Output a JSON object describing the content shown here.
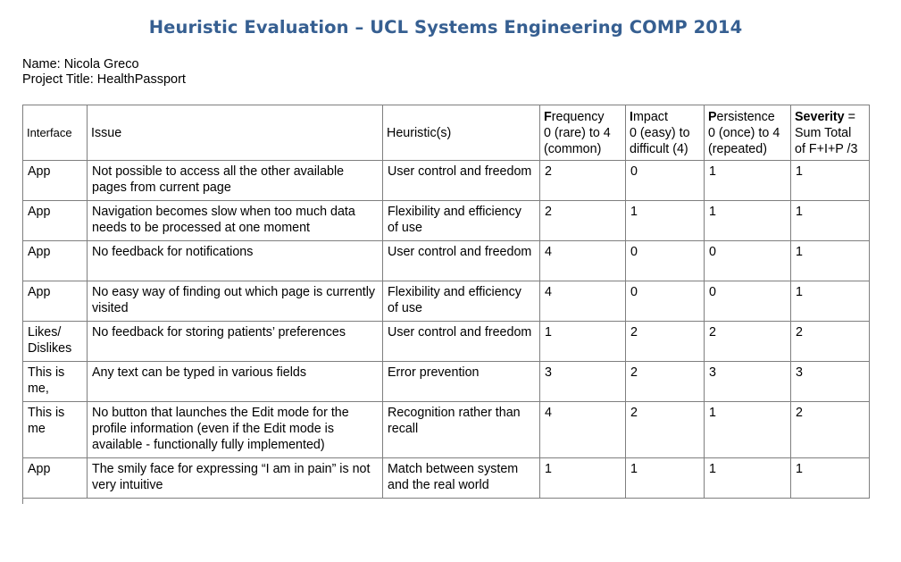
{
  "document": {
    "title": "Heuristic Evaluation – UCL Systems Engineering COMP 2014",
    "name_line": "Name: Nicola Greco",
    "project_line": "Project Title: HealthPassport"
  },
  "table": {
    "headers": {
      "interface": "Interface",
      "issue": "Issue",
      "heuristic": "Heuristic(s)",
      "frequency": {
        "bold": "F",
        "rest_1": "requency",
        "line2": "0 (rare)  to 4",
        "line3": "(common)"
      },
      "impact": {
        "bold": "I",
        "rest_1": "mpact",
        "line2": "0 (easy) to",
        "line3": "difficult (4)"
      },
      "persistence": {
        "bold": "P",
        "rest_1": "ersistence",
        "line2": "0 (once) to 4",
        "line3": "(repeated)"
      },
      "severity": {
        "bold": "Severity",
        "rest_1": " =",
        "line2": "Sum Total",
        "line3": "of F+I+P /3"
      }
    },
    "rows": [
      {
        "interface": "App",
        "issue": "Not possible to access all the other available pages from current page",
        "heuristic": "User control and freedom",
        "frequency": "2",
        "impact": "0",
        "persistence": "1",
        "severity": "1"
      },
      {
        "interface": "App",
        "issue": "Navigation becomes slow when too much data needs to be processed at one moment",
        "heuristic": "Flexibility and efficiency of use",
        "frequency": "2",
        "impact": "1",
        "persistence": "1",
        "severity": "1"
      },
      {
        "interface": "App",
        "issue": "No feedback for notifications",
        "heuristic": "User control and freedom",
        "frequency": "4",
        "impact": "0",
        "persistence": "0",
        "severity": "1"
      },
      {
        "interface": "App",
        "issue": "No easy way of finding out which page is currently visited",
        "heuristic": "Flexibility and efficiency of use",
        "frequency": "4",
        "impact": "0",
        "persistence": "0",
        "severity": "1"
      },
      {
        "interface": "Likes/ Dislikes",
        "issue": "No feedback for storing patients’ preferences",
        "heuristic": "User control and freedom",
        "frequency": "1",
        "impact": "2",
        "persistence": "2",
        "severity": "2"
      },
      {
        "interface": "This is me,",
        "issue": "Any text can be typed in various fields",
        "heuristic": "Error prevention",
        "frequency": "3",
        "impact": "2",
        "persistence": "3",
        "severity": "3"
      },
      {
        "interface": "This is me",
        "issue": "No button that launches the Edit mode for the profile information (even if the Edit mode is available - functionally fully implemented)",
        "heuristic": "Recognition rather than recall",
        "frequency": "4",
        "impact": "2",
        "persistence": "1",
        "severity": "2"
      },
      {
        "interface": "App",
        "issue": "The smily face for expressing “I am in pain” is not very intuitive",
        "heuristic": "Match between system and the real world",
        "frequency": "1",
        "impact": "1",
        "persistence": "1",
        "severity": "1"
      }
    ]
  },
  "colors": {
    "title": "#365f91",
    "border": "#7f7f7f",
    "text": "#000000"
  }
}
